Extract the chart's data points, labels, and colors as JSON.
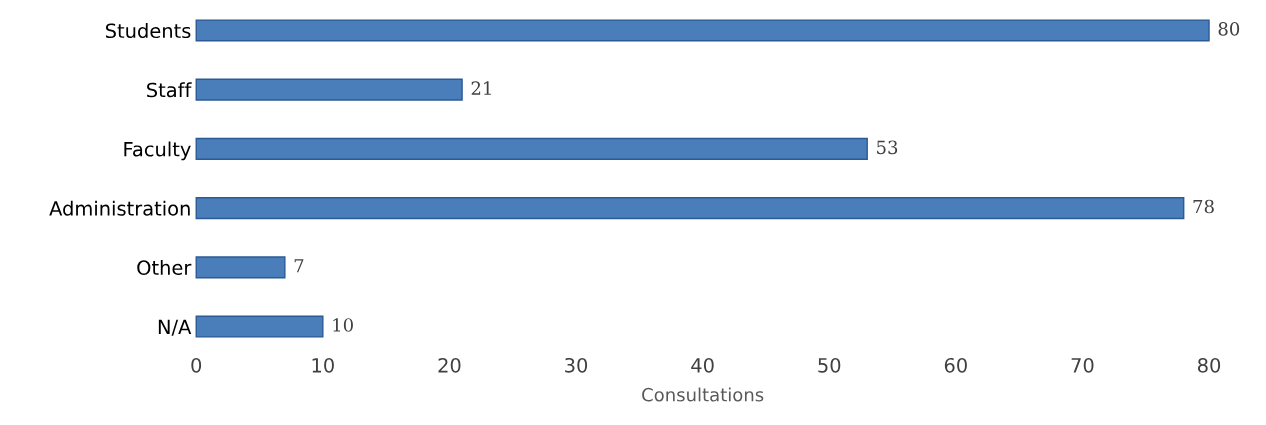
{
  "chart_data": {
    "type": "bar",
    "orientation": "horizontal",
    "xlabel": "Consultations",
    "categories": [
      "Students",
      "Staff",
      "Faculty",
      "Administration",
      "Other",
      "N/A"
    ],
    "values": [
      80,
      21,
      53,
      78,
      7,
      10
    ],
    "color": "#4a7ebb",
    "xlim": [
      0,
      80
    ],
    "xticks": [
      0,
      10,
      20,
      30,
      40,
      50,
      60,
      70,
      80
    ],
    "grid": false,
    "data_labels": true
  }
}
